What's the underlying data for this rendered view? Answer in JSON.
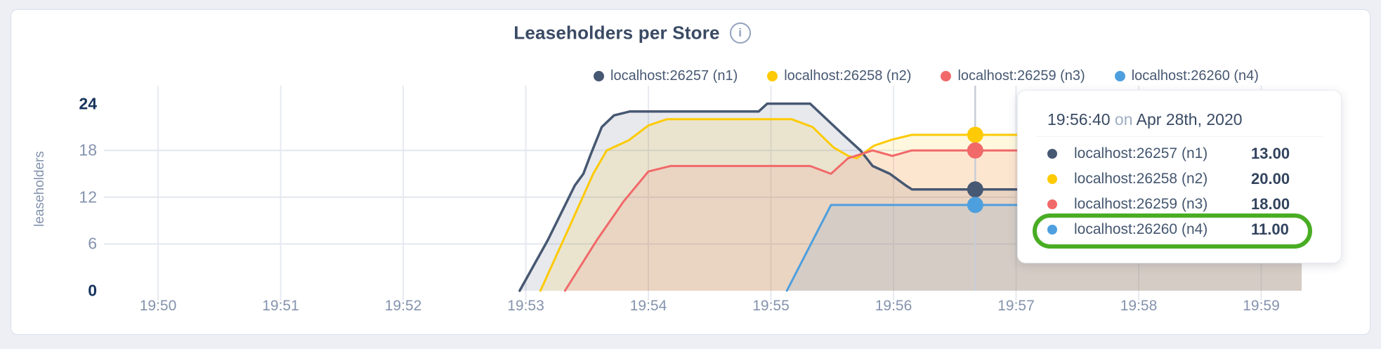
{
  "header": {
    "title": "Leaseholders per Store",
    "info_icon_glyph": "i"
  },
  "legend": {
    "items": [
      {
        "label": "localhost:26257 (n1)",
        "color": "#475872"
      },
      {
        "label": "localhost:26258 (n2)",
        "color": "#fdca04"
      },
      {
        "label": "localhost:26259 (n3)",
        "color": "#f16969"
      },
      {
        "label": "localhost:26260 (n4)",
        "color": "#4e9fde"
      }
    ]
  },
  "chart_data": {
    "type": "area",
    "title": "Leaseholders per Store",
    "ylabel": "leaseholders",
    "xlabel": "",
    "x_axis": {
      "tick_labels": [
        "19:50",
        "19:51",
        "19:52",
        "19:53",
        "19:54",
        "19:55",
        "19:56",
        "19:57",
        "19:58",
        "19:59"
      ],
      "minutes_per_tick": 1,
      "data_end_minutes": 9.33
    },
    "y_axis": {
      "ticks": [
        0,
        6,
        12,
        18,
        24
      ],
      "bold_ticks": [
        0,
        24
      ],
      "ylim": [
        0,
        26.5
      ]
    },
    "grid": {
      "h_values": [
        6,
        12,
        18
      ],
      "vertical_at_every_tick": true
    },
    "legend_position": "top",
    "series": [
      {
        "name": "localhost:26257 (n1)",
        "color": "#475872",
        "points": [
          [
            2.95,
            0
          ],
          [
            3.18,
            6.5
          ],
          [
            3.4,
            13.5
          ],
          [
            3.47,
            15
          ],
          [
            3.53,
            17.5
          ],
          [
            3.62,
            21
          ],
          [
            3.72,
            22.5
          ],
          [
            3.85,
            23
          ],
          [
            4.9,
            23
          ],
          [
            4.97,
            24
          ],
          [
            5.32,
            24
          ],
          [
            5.59,
            20
          ],
          [
            5.73,
            18
          ],
          [
            5.83,
            16
          ],
          [
            5.97,
            15
          ],
          [
            6.1,
            13.5
          ],
          [
            6.15,
            13
          ],
          [
            9.33,
            13
          ]
        ]
      },
      {
        "name": "localhost:26258 (n2)",
        "color": "#fdca04",
        "points": [
          [
            3.12,
            0
          ],
          [
            3.35,
            8
          ],
          [
            3.55,
            15
          ],
          [
            3.66,
            18
          ],
          [
            3.84,
            19.3
          ],
          [
            4.0,
            21.2
          ],
          [
            4.15,
            22
          ],
          [
            5.17,
            22
          ],
          [
            5.34,
            21
          ],
          [
            5.51,
            18.4
          ],
          [
            5.63,
            17.3
          ],
          [
            5.7,
            17
          ],
          [
            5.84,
            18.6
          ],
          [
            5.99,
            19.4
          ],
          [
            6.15,
            20
          ],
          [
            9.33,
            20
          ]
        ]
      },
      {
        "name": "localhost:26259 (n3)",
        "color": "#f16969",
        "points": [
          [
            3.32,
            0
          ],
          [
            3.58,
            6.5
          ],
          [
            3.8,
            11.5
          ],
          [
            4.0,
            15.3
          ],
          [
            4.18,
            16
          ],
          [
            5.32,
            16
          ],
          [
            5.49,
            15
          ],
          [
            5.63,
            17
          ],
          [
            5.83,
            18
          ],
          [
            5.99,
            17.3
          ],
          [
            6.15,
            18
          ],
          [
            9.33,
            18
          ]
        ]
      },
      {
        "name": "localhost:26260 (n4)",
        "color": "#4e9fde",
        "points": [
          [
            5.13,
            0
          ],
          [
            5.49,
            11
          ],
          [
            9.33,
            11
          ]
        ]
      }
    ],
    "hover": {
      "time_label": "19:56:40",
      "minutes_after_start": 6.6667,
      "values": [
        13,
        20,
        18,
        11
      ]
    }
  },
  "tooltip": {
    "time": "19:56:40",
    "connector": "on",
    "date": "Apr 28th, 2020",
    "rows": [
      {
        "label": "localhost:26257 (n1)",
        "value": "13.00",
        "color": "#475872"
      },
      {
        "label": "localhost:26258 (n2)",
        "value": "20.00",
        "color": "#fdca04"
      },
      {
        "label": "localhost:26259 (n3)",
        "value": "18.00",
        "color": "#f16969"
      },
      {
        "label": "localhost:26260 (n4)",
        "value": "11.00",
        "color": "#4e9fde"
      }
    ],
    "highlighted_row_index": 3
  },
  "annotation": {
    "type": "highlight-pill",
    "color": "#49ad24"
  }
}
